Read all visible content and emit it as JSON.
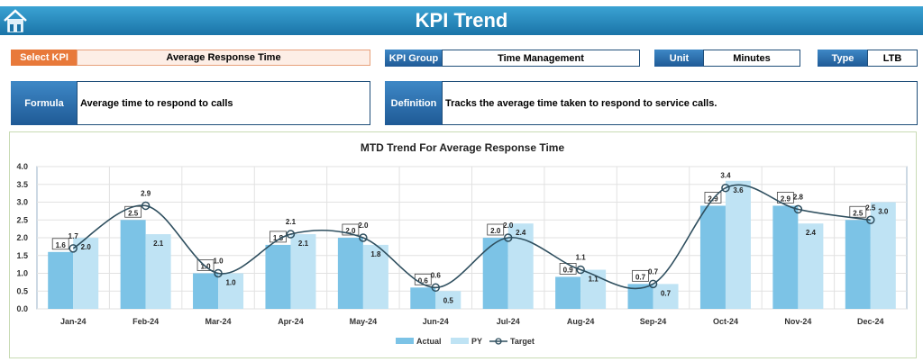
{
  "header": {
    "title": "KPI Trend",
    "home_icon": "home-icon"
  },
  "select_kpi": {
    "label": "Select KPI",
    "value": "Average Response Time"
  },
  "kpi_group": {
    "label": "KPI Group",
    "value": "Time Management"
  },
  "unit": {
    "label": "Unit",
    "value": "Minutes"
  },
  "type": {
    "label": "Type",
    "value": "LTB"
  },
  "formula": {
    "label": "Formula",
    "value": "Average time to respond to calls"
  },
  "definition": {
    "label": "Definition",
    "value": "Tracks the average time taken to respond to service calls."
  },
  "colors": {
    "actual": "#7cc3e6",
    "py": "#bfe3f4",
    "target": "#2f4f5f",
    "select_kpi": "#e8793a",
    "header": "#2286bd"
  },
  "chart_data": {
    "type": "bar",
    "title": "MTD Trend For Average Response Time",
    "categories": [
      "Jan-24",
      "Feb-24",
      "Mar-24",
      "Apr-24",
      "May-24",
      "Jun-24",
      "Jul-24",
      "Aug-24",
      "Sep-24",
      "Oct-24",
      "Nov-24",
      "Dec-24"
    ],
    "series": [
      {
        "name": "Actual",
        "type": "bar",
        "values": [
          1.6,
          2.5,
          1.0,
          1.8,
          2.0,
          0.6,
          2.0,
          0.9,
          0.7,
          2.9,
          2.9,
          2.5
        ]
      },
      {
        "name": "PY",
        "type": "bar",
        "values": [
          2.0,
          2.1,
          1.0,
          2.1,
          1.8,
          0.5,
          2.4,
          1.1,
          0.7,
          3.6,
          2.4,
          3.0
        ]
      },
      {
        "name": "Target",
        "type": "line",
        "smooth": true,
        "values": [
          1.7,
          2.9,
          1.0,
          2.1,
          2.0,
          0.6,
          2.0,
          1.1,
          0.7,
          3.4,
          2.8,
          2.5
        ]
      }
    ],
    "ylim": [
      0,
      4.0
    ],
    "yticks": [
      "0.0",
      "0.5",
      "1.0",
      "1.5",
      "2.0",
      "2.5",
      "3.0",
      "3.5",
      "4.0"
    ],
    "grid": true,
    "legend": "bottom"
  }
}
